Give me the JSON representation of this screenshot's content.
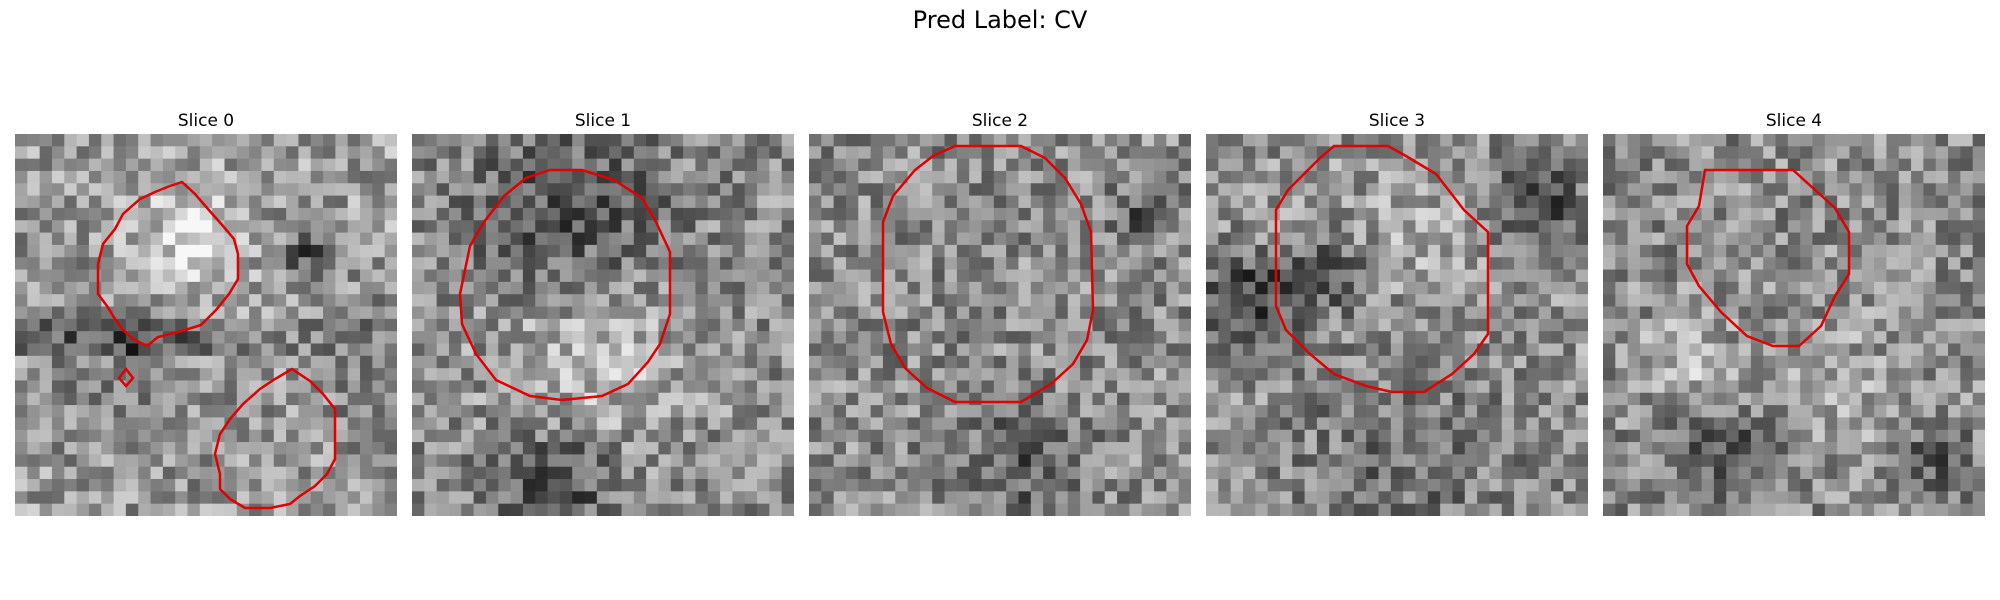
{
  "figure": {
    "title": "Pred Label: CV"
  },
  "panels": [
    {
      "title": "Slice 0",
      "overlay_color": "#e00000"
    },
    {
      "title": "Slice 1",
      "overlay_color": "#e00000"
    },
    {
      "title": "Slice 2",
      "overlay_color": "#e00000"
    },
    {
      "title": "Slice 3",
      "overlay_color": "#e00000"
    },
    {
      "title": "Slice 4",
      "overlay_color": "#e00000"
    }
  ]
}
